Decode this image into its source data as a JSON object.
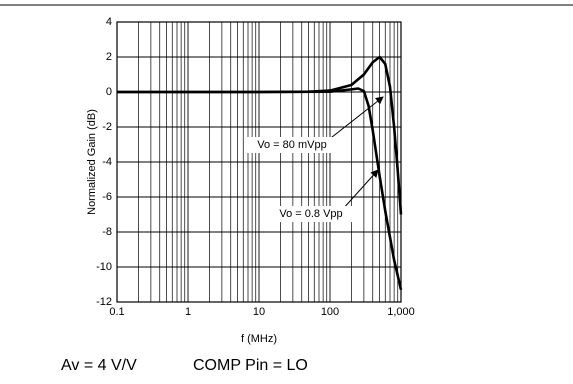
{
  "chart_data": {
    "type": "line",
    "x_label": "f (MHz)",
    "y_label": "Normalized Gain (dB)",
    "xlog": true,
    "grid": true,
    "xlim": [
      0.1,
      1000
    ],
    "ylim": [
      -12,
      4
    ],
    "xticks": [
      0.1,
      1,
      10,
      100,
      {
        "value": 1000,
        "label": "1,000"
      }
    ],
    "yticks": [
      -12,
      -10,
      -8,
      -6,
      -4,
      -2,
      0,
      2,
      4
    ],
    "series": [
      {
        "name": "Vo = 80 mVpp",
        "color": "#000000",
        "x": [
          0.1,
          1,
          10,
          50,
          100,
          200,
          300,
          400,
          500,
          600,
          700,
          800,
          900,
          1000
        ],
        "values": [
          0,
          0,
          0,
          0.02,
          0.08,
          0.4,
          1.0,
          1.7,
          2.0,
          1.6,
          0.3,
          -2,
          -4.5,
          -7
        ]
      },
      {
        "name": "Vo = 0.8 Vpp",
        "color": "#000000",
        "x": [
          0.1,
          1,
          10,
          100,
          200,
          250,
          300,
          350,
          400,
          500,
          600,
          700,
          800,
          900,
          1000
        ],
        "values": [
          0,
          0,
          0,
          0.02,
          0.15,
          0.2,
          0.05,
          -0.8,
          -2.2,
          -4.8,
          -6.8,
          -8.3,
          -9.6,
          -10.5,
          -11.3
        ]
      }
    ],
    "notes": [
      "Av = 4 V/V",
      "COMP Pin = LO"
    ]
  }
}
